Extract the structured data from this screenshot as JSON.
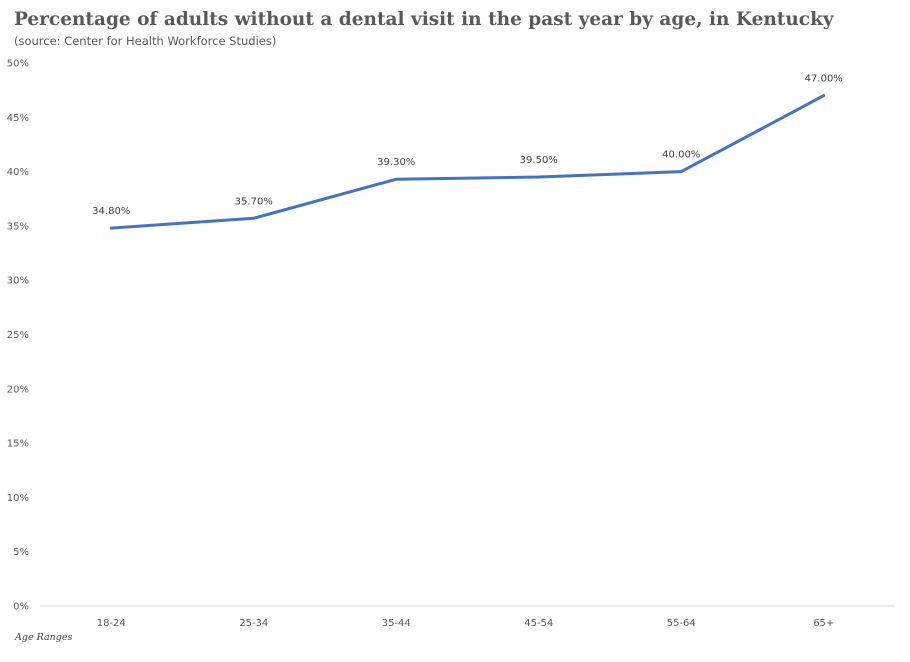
{
  "chart_data": {
    "type": "line",
    "title": "Percentage of adults without a dental visit in the past year by age, in Kentucky",
    "subtitle": "(source:  Center  for Health  Workforce Studies)",
    "xlabel": "Age Ranges",
    "ylabel": "",
    "categories": [
      "18-24",
      "25-34",
      "35-44",
      "45-54",
      "55-64",
      "65+"
    ],
    "values": [
      34.8,
      35.7,
      39.3,
      39.5,
      40.0,
      47.0
    ],
    "data_labels": [
      "34.80%",
      "35.70%",
      "39.30%",
      "39.50%",
      "40.00%",
      "47.00%"
    ],
    "y_ticks": [
      "0%",
      "5%",
      "10%",
      "15%",
      "20%",
      "25%",
      "30%",
      "35%",
      "40%",
      "45%",
      "50%"
    ],
    "ylim": [
      0,
      50
    ],
    "grid": false,
    "legend": "none",
    "line_color": "#4472c4"
  }
}
